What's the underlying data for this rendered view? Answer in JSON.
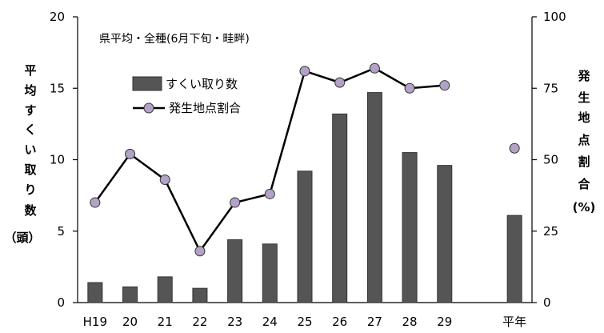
{
  "chart_data": {
    "type": "bar+line",
    "title": "県平均・全種(6月下旬・畦畔)",
    "categories": [
      "H19",
      "20",
      "21",
      "22",
      "23",
      "24",
      "25",
      "26",
      "27",
      "28",
      "29",
      "",
      "平年"
    ],
    "series": [
      {
        "name": "すくい取り数",
        "type": "bar",
        "axis": "left",
        "color": "#555555",
        "values": [
          1.4,
          1.1,
          1.8,
          1.0,
          4.4,
          4.1,
          9.2,
          13.2,
          14.7,
          10.5,
          9.6,
          null,
          6.1
        ]
      },
      {
        "name": "発生地点割合",
        "type": "line",
        "axis": "right",
        "color": "#000000",
        "marker_color": "#b3a2c7",
        "values": [
          35,
          52,
          43,
          18,
          35,
          38,
          81,
          77,
          82,
          75,
          76,
          null,
          54
        ],
        "connect_through": 10
      }
    ],
    "left_axis": {
      "label_chars": [
        "平",
        "均",
        "す",
        "く",
        "い",
        "取",
        "り",
        "数",
        "（頭）"
      ],
      "ylim": [
        0,
        20
      ],
      "ticks": [
        0,
        5,
        10,
        15,
        20
      ]
    },
    "right_axis": {
      "label_chars": [
        "発",
        "生",
        "地",
        "点",
        "割",
        "合",
        "(%)"
      ],
      "ylim": [
        0,
        100
      ],
      "ticks": [
        0,
        25,
        50,
        75,
        100
      ]
    },
    "grid": false,
    "legend_position": "top-left"
  }
}
